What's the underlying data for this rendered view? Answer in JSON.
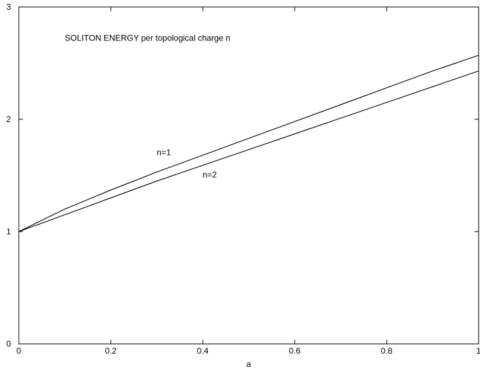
{
  "chart_data": {
    "type": "line",
    "title": "",
    "xlabel": "a",
    "ylabel": "",
    "xlim": [
      0,
      1
    ],
    "ylim": [
      0,
      3
    ],
    "grid": false,
    "x_ticks": [
      0,
      0.2,
      0.4,
      0.6,
      0.8,
      1
    ],
    "x_tick_labels": [
      "0",
      "0.2",
      "0.4",
      "0.6",
      "0.8",
      "1"
    ],
    "y_ticks": [
      0,
      1,
      2,
      3
    ],
    "y_tick_labels": [
      "0",
      "1",
      "2",
      "3"
    ],
    "annotations": [
      {
        "text": "SOLITON ENERGY per topological charge n",
        "x": 0.1,
        "y": 2.7
      },
      {
        "text": "n=1",
        "x": 0.3,
        "y": 1.68
      },
      {
        "text": "n=2",
        "x": 0.4,
        "y": 1.48
      }
    ],
    "series": [
      {
        "x": [
          0,
          0.1,
          0.2,
          0.3,
          0.4,
          0.5,
          0.6,
          0.7,
          0.8,
          0.9,
          1.0
        ],
        "values": [
          1.0,
          1.2,
          1.37,
          1.53,
          1.68,
          1.83,
          1.98,
          2.13,
          2.28,
          2.43,
          2.57
        ]
      },
      {
        "x": [
          0,
          0.1,
          0.2,
          0.3,
          0.4,
          0.5,
          0.6,
          0.7,
          0.8,
          0.9,
          1.0
        ],
        "values": [
          1.0,
          1.15,
          1.3,
          1.45,
          1.59,
          1.73,
          1.87,
          2.01,
          2.15,
          2.29,
          2.43
        ]
      }
    ]
  }
}
